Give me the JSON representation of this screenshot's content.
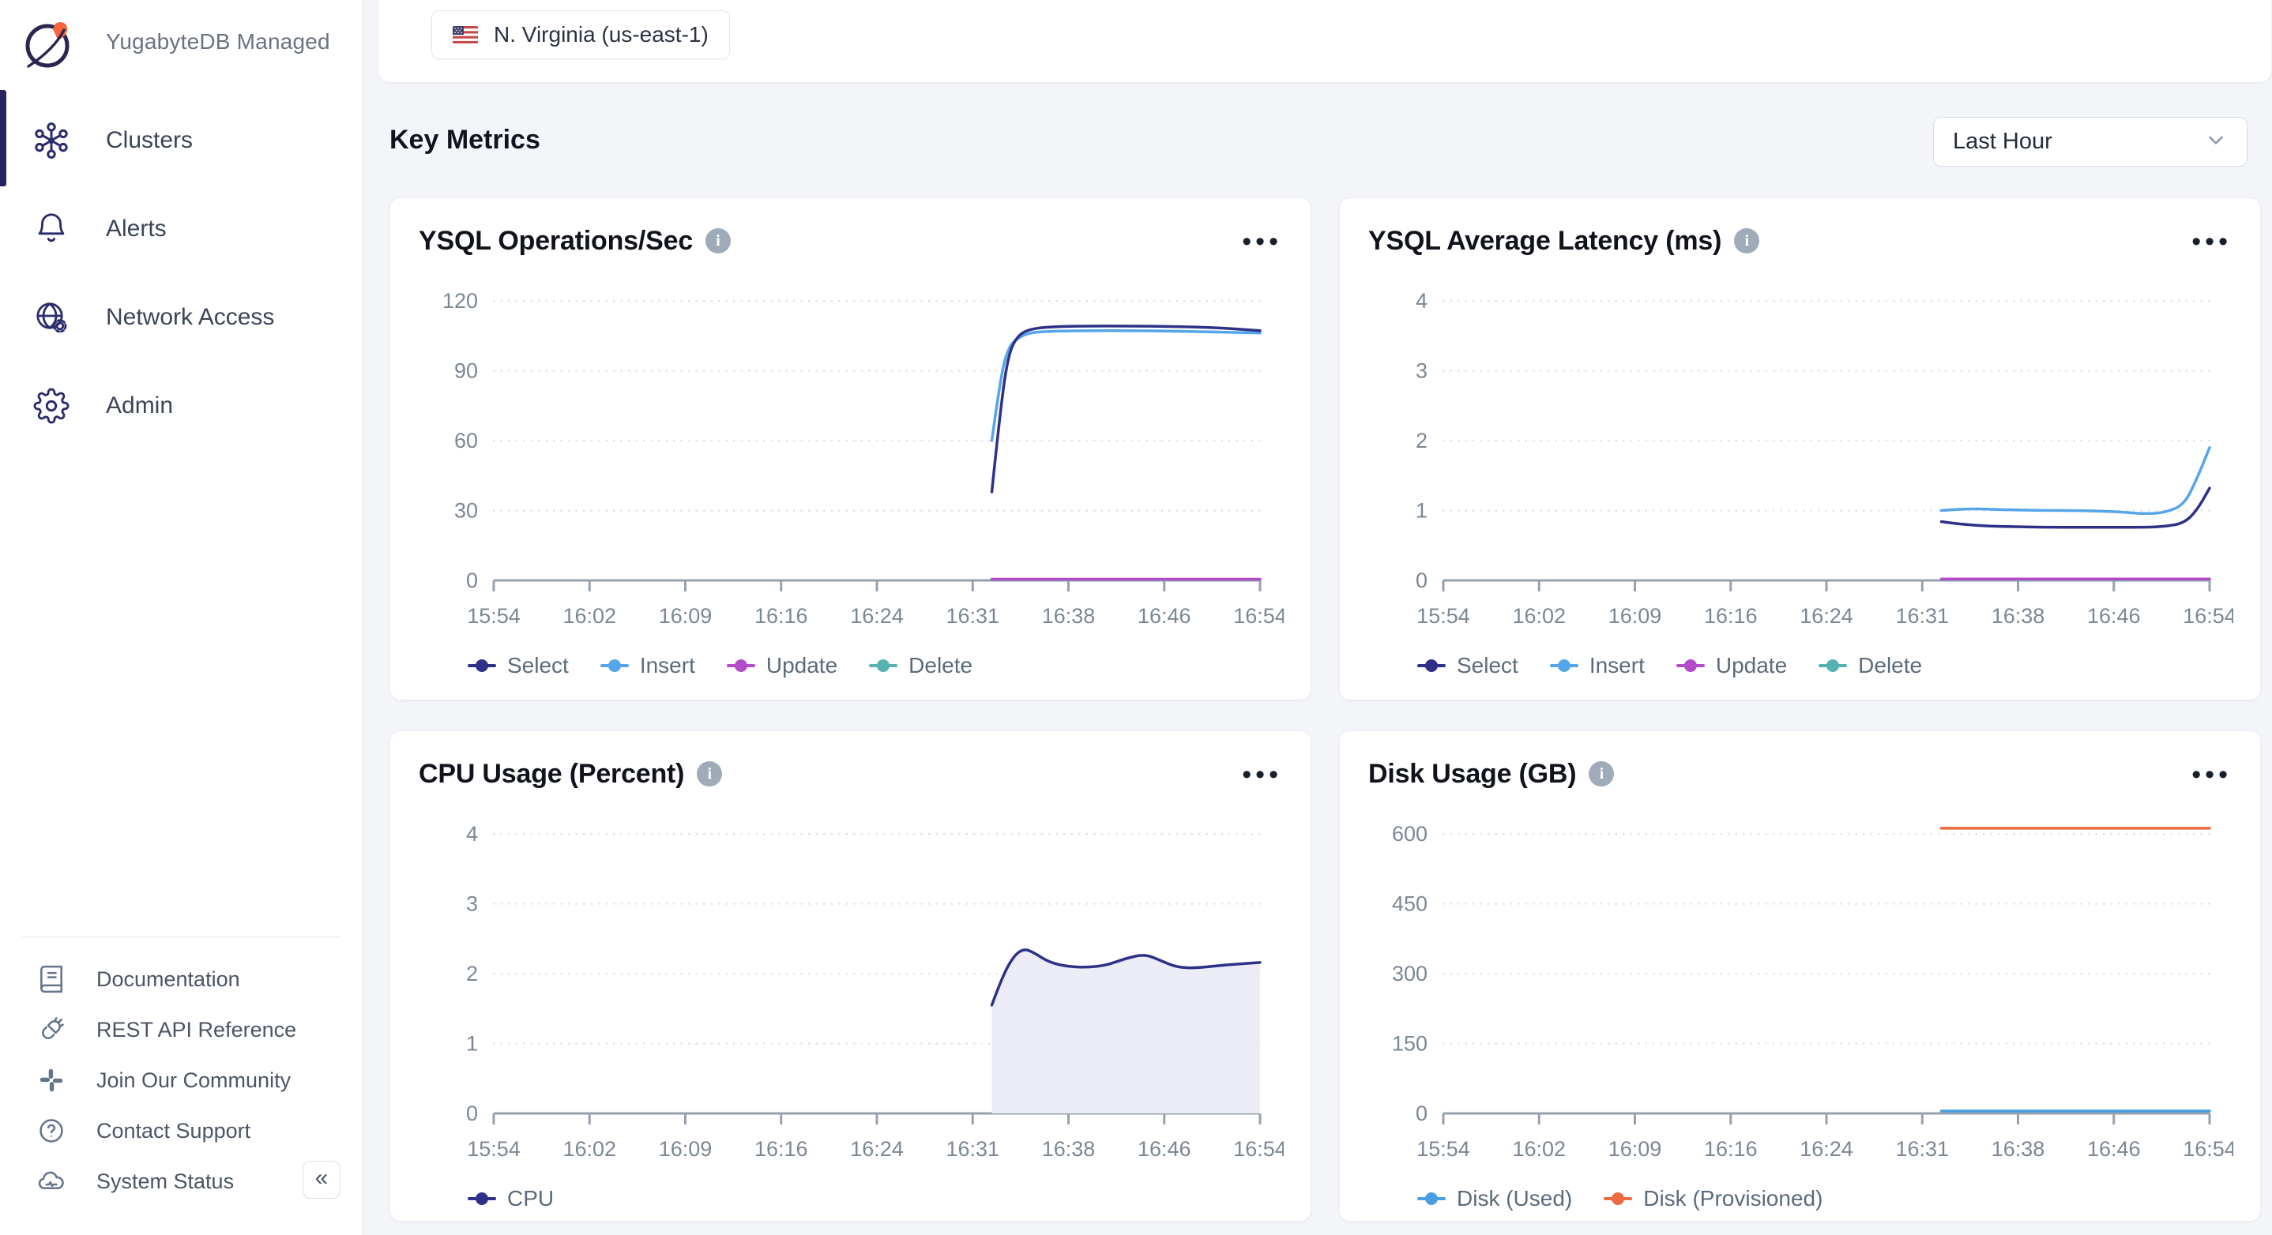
{
  "sidebar": {
    "logo_text": "YugabyteDB Managed",
    "nav": [
      {
        "label": "Clusters",
        "active": true
      },
      {
        "label": "Alerts",
        "active": false
      },
      {
        "label": "Network Access",
        "active": false
      },
      {
        "label": "Admin",
        "active": false
      }
    ],
    "footer_links": [
      {
        "label": "Documentation"
      },
      {
        "label": "REST API Reference"
      },
      {
        "label": "Join Our Community"
      },
      {
        "label": "Contact Support"
      },
      {
        "label": "System Status"
      }
    ],
    "collapse_glyph": "«"
  },
  "topbar": {
    "region_label": "N. Virginia (us-east-1)"
  },
  "header": {
    "title": "Key Metrics",
    "time_range": "Last Hour"
  },
  "colors": {
    "select": "#2e3187",
    "insert": "#55a5ea",
    "update": "#b44bc9",
    "delete": "#54b2b0",
    "cpu": "#2e3187",
    "disk_used": "#4a9fe0",
    "disk_provisioned": "#ec6a3f",
    "accent_navy": "#262262",
    "page_bg": "#f3f5f9"
  },
  "chart_data": [
    {
      "type": "line",
      "title": "YSQL Operations/Sec",
      "ylim": [
        0,
        120
      ],
      "yticks": [
        0,
        30,
        60,
        90,
        120
      ],
      "xticks": [
        "15:54",
        "16:02",
        "16:09",
        "16:16",
        "16:24",
        "16:31",
        "16:38",
        "16:46",
        "16:54"
      ],
      "x_axis_minutes": [
        0,
        60
      ],
      "grid": "dotted horizontal",
      "legend_position": "bottom",
      "series": [
        {
          "name": "Select",
          "color": "#2e3187",
          "x": [
            39,
            39.7,
            40.3,
            41,
            42,
            44,
            47,
            50,
            53,
            56,
            58,
            60
          ],
          "y": [
            38,
            75,
            97,
            105,
            108,
            109,
            109.2,
            109.2,
            109,
            108.6,
            108,
            107.2
          ]
        },
        {
          "name": "Insert",
          "color": "#55a5ea",
          "x": [
            39,
            39.7,
            40.3,
            41,
            42,
            44,
            47,
            50,
            53,
            56,
            58,
            60
          ],
          "y": [
            60,
            88,
            100,
            104,
            106.5,
            107,
            107.2,
            107.2,
            107,
            106.7,
            106.4,
            106.2
          ]
        },
        {
          "name": "Update",
          "color": "#b44bc9",
          "x": [
            39,
            60
          ],
          "y": [
            0.5,
            0.5
          ]
        },
        {
          "name": "Delete",
          "color": "#54b2b0",
          "x": [
            39,
            60
          ],
          "y": [
            0.4,
            0.4
          ]
        }
      ]
    },
    {
      "type": "line",
      "title": "YSQL Average Latency (ms)",
      "ylim": [
        0,
        4
      ],
      "yticks": [
        0,
        1,
        2,
        3,
        4
      ],
      "xticks": [
        "15:54",
        "16:02",
        "16:09",
        "16:16",
        "16:24",
        "16:31",
        "16:38",
        "16:46",
        "16:54"
      ],
      "x_axis_minutes": [
        0,
        60
      ],
      "grid": "dotted horizontal",
      "legend_position": "bottom",
      "series": [
        {
          "name": "Select",
          "color": "#2e3187",
          "x": [
            39,
            41,
            44,
            47,
            50,
            53,
            55,
            56.5,
            58,
            59,
            60
          ],
          "y": [
            0.84,
            0.79,
            0.77,
            0.76,
            0.76,
            0.76,
            0.76,
            0.77,
            0.82,
            1.0,
            1.32
          ]
        },
        {
          "name": "Insert",
          "color": "#55a5ea",
          "x": [
            39,
            41,
            44,
            47,
            50,
            53,
            55,
            56.5,
            58,
            59,
            60
          ],
          "y": [
            1.0,
            1.03,
            1.01,
            1.0,
            1.0,
            0.98,
            0.95,
            0.97,
            1.08,
            1.45,
            1.9
          ]
        },
        {
          "name": "Update",
          "color": "#b44bc9",
          "x": [
            39,
            60
          ],
          "y": [
            0.02,
            0.02
          ]
        },
        {
          "name": "Delete",
          "color": "#54b2b0",
          "x": [
            39,
            60
          ],
          "y": [
            0.015,
            0.015
          ]
        }
      ]
    },
    {
      "type": "area",
      "title": "CPU Usage (Percent)",
      "ylim": [
        0,
        4
      ],
      "yticks": [
        0,
        1,
        2,
        3,
        4
      ],
      "xticks": [
        "15:54",
        "16:02",
        "16:09",
        "16:16",
        "16:24",
        "16:31",
        "16:38",
        "16:46",
        "16:54"
      ],
      "x_axis_minutes": [
        0,
        60
      ],
      "grid": "dotted horizontal",
      "legend_position": "bottom",
      "series": [
        {
          "name": "CPU",
          "color": "#2e3187",
          "fill": "#ebecf5",
          "x": [
            39,
            39.8,
            40.7,
            41.5,
            42.3,
            43.5,
            45,
            46.5,
            48,
            49.5,
            51,
            52.3,
            53.5,
            55,
            57,
            58.5,
            60
          ],
          "y": [
            1.55,
            1.95,
            2.25,
            2.36,
            2.3,
            2.16,
            2.1,
            2.09,
            2.12,
            2.22,
            2.28,
            2.18,
            2.09,
            2.08,
            2.12,
            2.14,
            2.16
          ]
        }
      ]
    },
    {
      "type": "line",
      "title": "Disk Usage (GB)",
      "ylim": [
        0,
        600
      ],
      "yticks": [
        0,
        150,
        300,
        450,
        600
      ],
      "xticks": [
        "15:54",
        "16:02",
        "16:09",
        "16:16",
        "16:24",
        "16:31",
        "16:38",
        "16:46",
        "16:54"
      ],
      "x_axis_minutes": [
        0,
        60
      ],
      "grid": "dotted horizontal",
      "legend_position": "bottom",
      "series": [
        {
          "name": "Disk (Used)",
          "color": "#4a9fe0",
          "x": [
            39,
            60
          ],
          "y": [
            5,
            5
          ]
        },
        {
          "name": "Disk (Provisioned)",
          "color": "#ec6a3f",
          "x": [
            39,
            60
          ],
          "y": [
            612,
            612
          ]
        }
      ]
    }
  ]
}
